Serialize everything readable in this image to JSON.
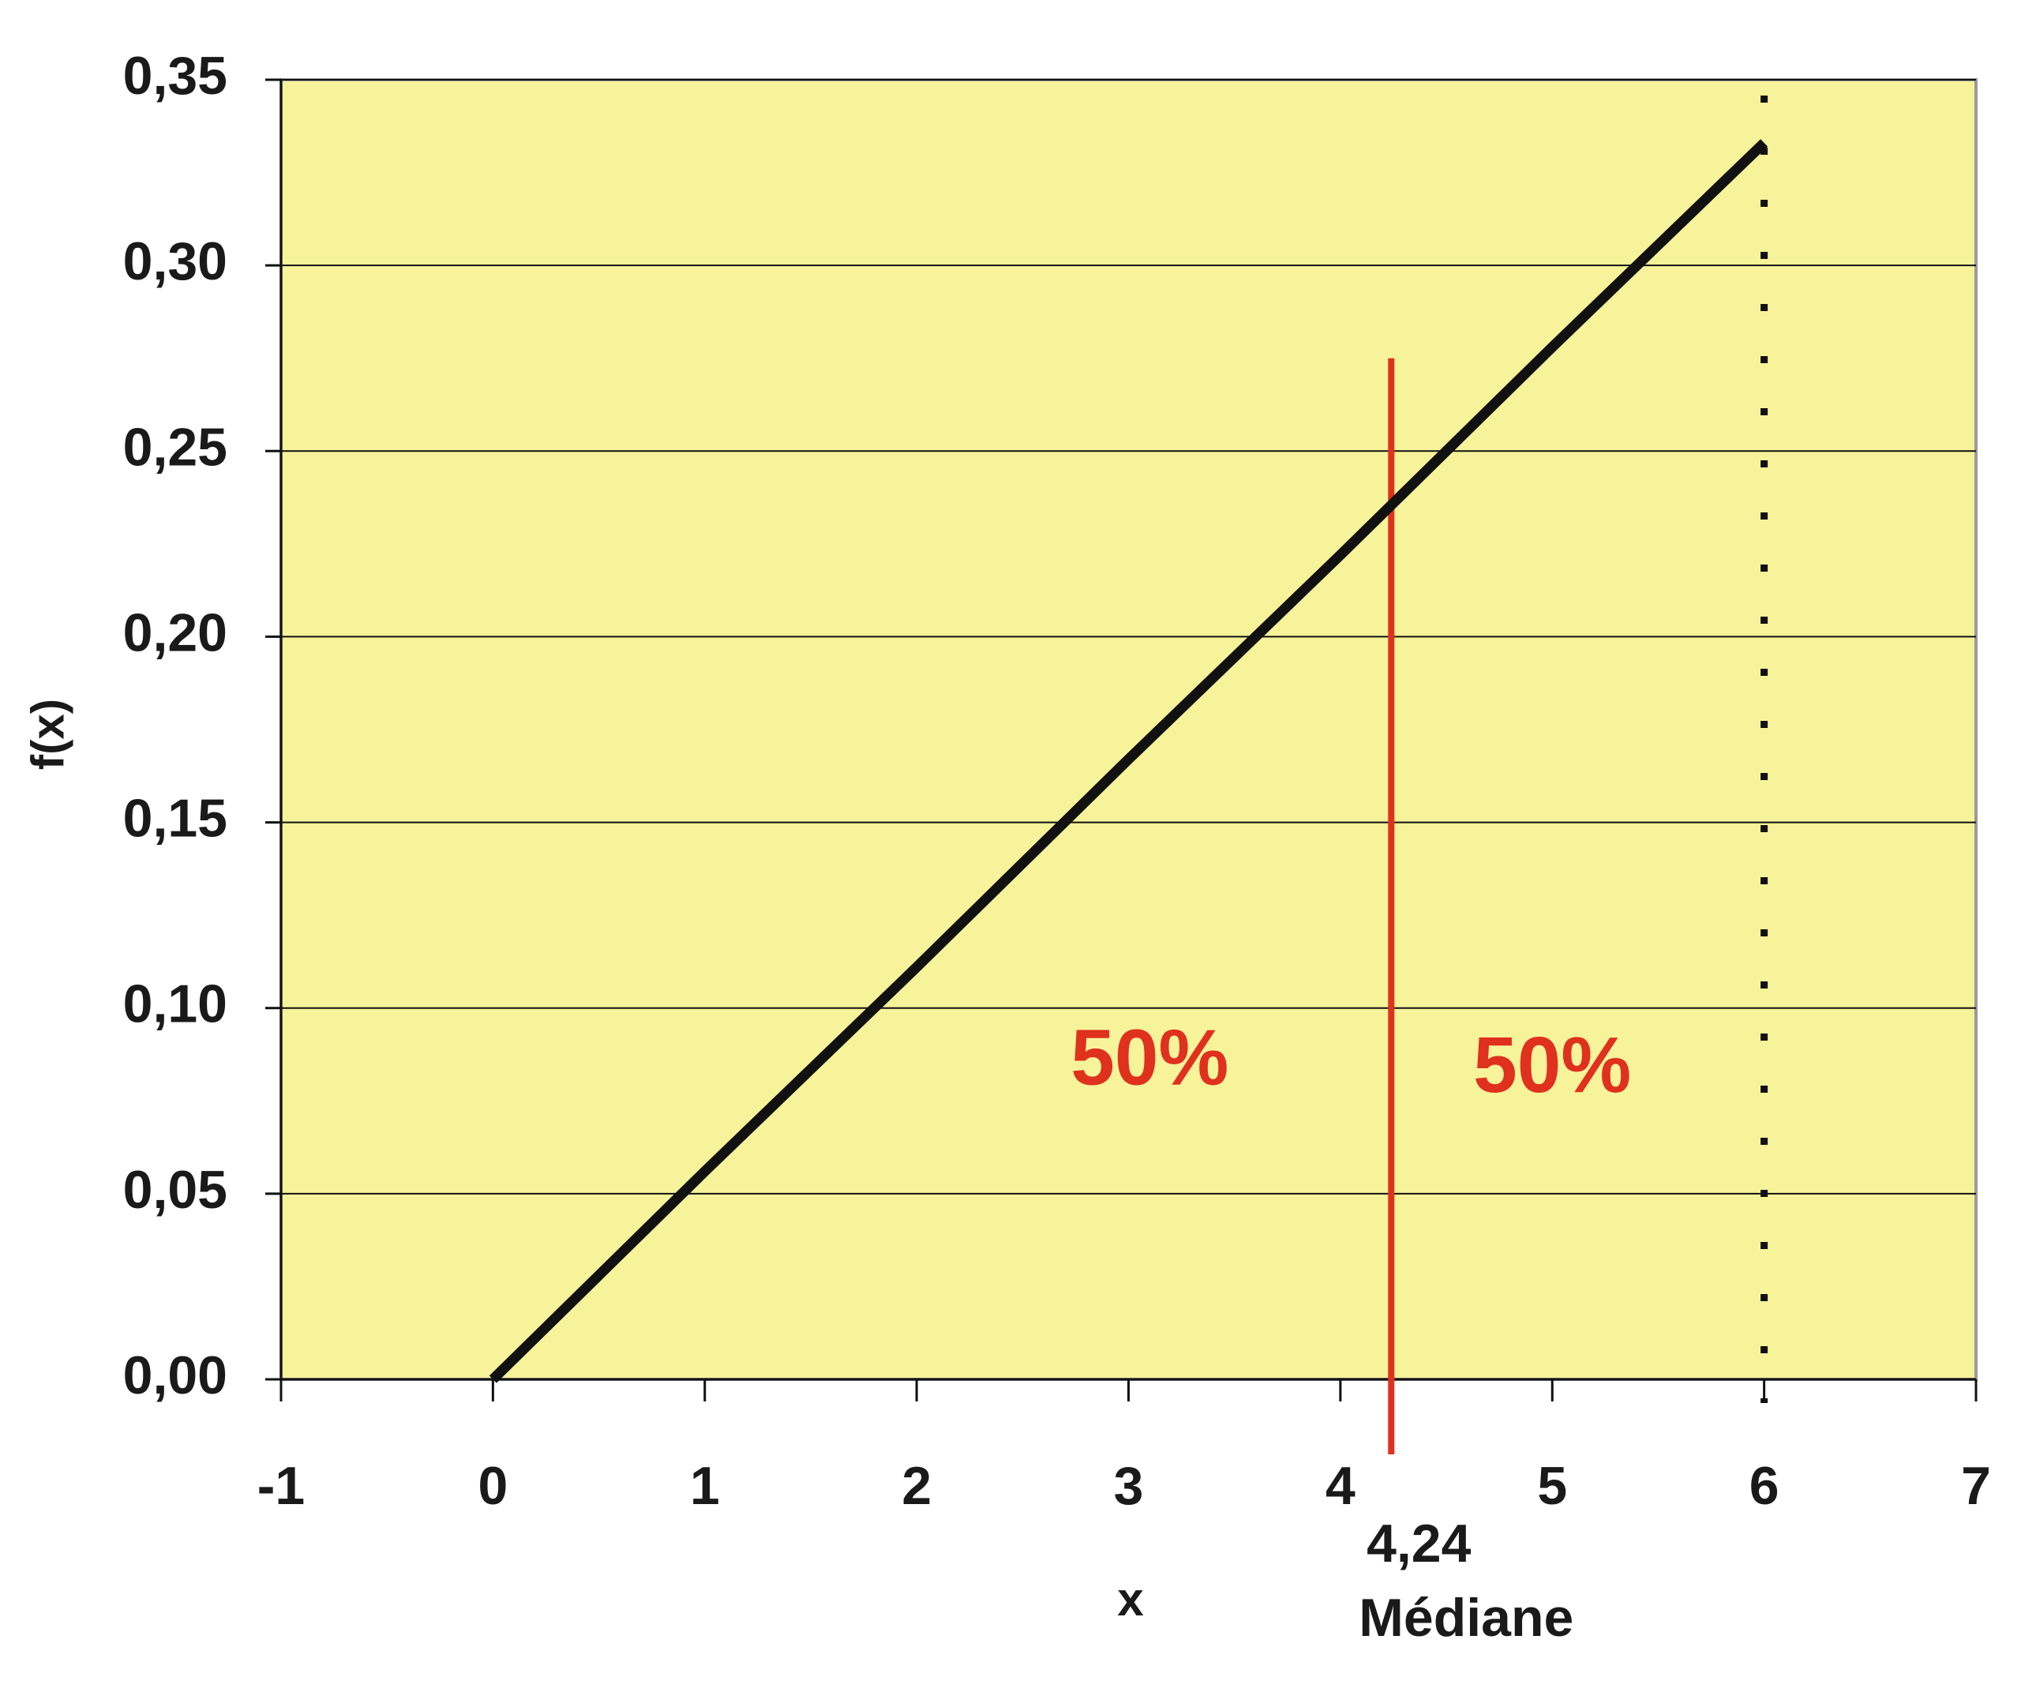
{
  "chart_data": {
    "type": "line",
    "x": [
      0,
      1,
      2,
      3,
      4,
      5,
      6
    ],
    "series": [
      {
        "color": "#111111",
        "values": [
          0,
          0.056,
          0.111,
          0.167,
          0.222,
          0.278,
          0.333
        ]
      }
    ],
    "xlabel": "x",
    "ylabel": "f(x)",
    "xlim": [
      -1,
      7
    ],
    "xticks": [
      -1,
      0,
      1,
      2,
      3,
      4,
      5,
      6,
      7
    ],
    "ylim": [
      0,
      0.35
    ],
    "yticks": [
      {
        "value": 0,
        "label": "0,00"
      },
      {
        "value": 0.05,
        "label": "0,05"
      },
      {
        "value": 0.1,
        "label": "0,10"
      },
      {
        "value": 0.15,
        "label": "0,15"
      },
      {
        "value": 0.2,
        "label": "0,20"
      },
      {
        "value": 0.25,
        "label": "0,25"
      },
      {
        "value": 0.3,
        "label": "0,30"
      },
      {
        "value": 0.35,
        "label": "0,35"
      }
    ],
    "grid": true,
    "background": "#f7f39a",
    "median": {
      "x": 4.24,
      "label": "4,24",
      "text": "Médiane",
      "y_top": 0.275,
      "color": "#e0301e"
    },
    "bound": {
      "x": 6
    },
    "annotations": [
      {
        "text": "50%",
        "x": 3.1,
        "y": 0.085
      },
      {
        "text": "50%",
        "x": 5.0,
        "y": 0.083
      }
    ]
  }
}
